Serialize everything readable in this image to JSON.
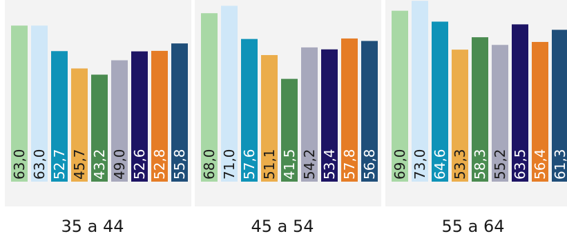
{
  "chart_data": {
    "type": "bar",
    "categories": [
      "35 a 44",
      "45 a 54",
      "55 a 64"
    ],
    "value_format": "comma-decimal",
    "series": [
      {
        "values": [
          63.0,
          68.0,
          69.0
        ],
        "color": "#a8d8a5",
        "label_color": "#1a1a1a"
      },
      {
        "values": [
          63.0,
          71.0,
          73.0
        ],
        "color": "#cfe7f8",
        "label_color": "#1a1a1a"
      },
      {
        "values": [
          52.7,
          57.6,
          64.6
        ],
        "color": "#0f93b8",
        "label_color": "#ffffff"
      },
      {
        "values": [
          45.7,
          51.1,
          53.3
        ],
        "color": "#ebad4b",
        "label_color": "#1a1a1a"
      },
      {
        "values": [
          43.2,
          41.5,
          58.3
        ],
        "color": "#4a8b50",
        "label_color": "#ffffff"
      },
      {
        "values": [
          49.0,
          54.2,
          55.2
        ],
        "color": "#a7a8bc",
        "label_color": "#1a1a1a"
      },
      {
        "values": [
          52.6,
          53.4,
          63.5
        ],
        "color": "#1d1464",
        "label_color": "#ffffff"
      },
      {
        "values": [
          52.8,
          57.8,
          56.4
        ],
        "color": "#e57c26",
        "label_color": "#ffffff"
      },
      {
        "values": [
          55.8,
          56.8,
          61.3
        ],
        "color": "#1f4e79",
        "label_color": "#ffffff"
      }
    ],
    "ylim": [
      0,
      73.2
    ],
    "title": "",
    "xlabel": "",
    "ylabel": "",
    "legend": "none",
    "grid": false
  }
}
